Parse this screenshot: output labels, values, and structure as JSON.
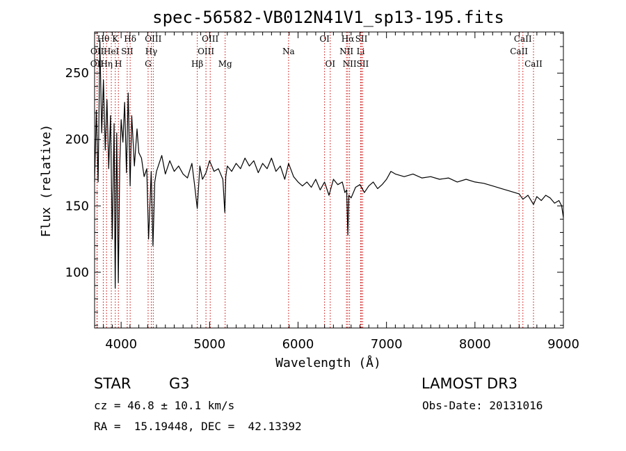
{
  "chart_data": {
    "type": "line",
    "title": "spec-56582-VB012N41V1_sp13-195.fits",
    "xlabel": "Wavelength (Å)",
    "ylabel": "Flux (relative)",
    "xlim": [
      3700,
      9000
    ],
    "ylim": [
      58,
      281
    ],
    "xticks": [
      4000,
      5000,
      6000,
      7000,
      8000,
      9000
    ],
    "yticks": [
      100,
      150,
      200,
      250
    ],
    "grid": false,
    "series": [
      {
        "name": "flux",
        "x": [
          3700,
          3720,
          3740,
          3760,
          3780,
          3800,
          3820,
          3840,
          3860,
          3880,
          3900,
          3920,
          3933,
          3950,
          3968,
          3985,
          4000,
          4020,
          4040,
          4060,
          4080,
          4102,
          4120,
          4150,
          4180,
          4200,
          4230,
          4260,
          4290,
          4310,
          4340,
          4360,
          4380,
          4400,
          4430,
          4460,
          4500,
          4550,
          4600,
          4650,
          4700,
          4750,
          4800,
          4830,
          4861,
          4890,
          4920,
          4960,
          5000,
          5050,
          5100,
          5150,
          5172,
          5183,
          5200,
          5250,
          5300,
          5350,
          5400,
          5450,
          5500,
          5550,
          5600,
          5650,
          5700,
          5750,
          5800,
          5850,
          5893,
          5950,
          6000,
          6050,
          6100,
          6150,
          6200,
          6250,
          6300,
          6350,
          6400,
          6450,
          6500,
          6530,
          6550,
          6563,
          6575,
          6600,
          6650,
          6700,
          6750,
          6800,
          6850,
          6900,
          6950,
          7000,
          7050,
          7100,
          7200,
          7300,
          7400,
          7500,
          7600,
          7700,
          7800,
          7900,
          8000,
          8100,
          8200,
          8300,
          8400,
          8500,
          8542,
          8600,
          8662,
          8700,
          8750,
          8800,
          8850,
          8900,
          8950,
          8980,
          9000
        ],
        "values": [
          168,
          222,
          168,
          275,
          205,
          245,
          192,
          230,
          178,
          218,
          125,
          212,
          88,
          205,
          92,
          182,
          215,
          198,
          228,
          175,
          235,
          165,
          218,
          180,
          208,
          190,
          186,
          172,
          178,
          125,
          176,
          120,
          168,
          176,
          182,
          188,
          174,
          184,
          176,
          180,
          174,
          171,
          182,
          166,
          148,
          180,
          170,
          175,
          184,
          176,
          178,
          170,
          145,
          172,
          180,
          176,
          182,
          178,
          186,
          180,
          184,
          175,
          182,
          178,
          186,
          176,
          180,
          170,
          182,
          172,
          168,
          165,
          168,
          164,
          170,
          162,
          168,
          158,
          170,
          166,
          168,
          160,
          162,
          128,
          158,
          156,
          164,
          166,
          160,
          165,
          168,
          163,
          166,
          170,
          176,
          174,
          172,
          174,
          171,
          172,
          170,
          171,
          168,
          170,
          168,
          167,
          165,
          163,
          161,
          159,
          155,
          158,
          151,
          157,
          154,
          158,
          156,
          152,
          154,
          150,
          141
        ]
      }
    ],
    "lines": [
      {
        "label": "OII",
        "wave": 3727,
        "row": 2
      },
      {
        "label": "OII",
        "wave": 3729,
        "row": 1
      },
      {
        "label": "Hθ",
        "wave": 3798,
        "row": 0
      },
      {
        "label": "Hη",
        "wave": 3835,
        "row": 2
      },
      {
        "label": "HeI",
        "wave": 3889,
        "row": 1
      },
      {
        "label": "K",
        "wave": 3934,
        "row": 0
      },
      {
        "label": "SII",
        "wave": 4069,
        "row": 1
      },
      {
        "label": "H",
        "wave": 3969,
        "row": 2
      },
      {
        "label": "Hδ",
        "wave": 4102,
        "row": 0
      },
      {
        "label": "G",
        "wave": 4305,
        "row": 2
      },
      {
        "label": "Hγ",
        "wave": 4341,
        "row": 1
      },
      {
        "label": "OIII",
        "wave": 4363,
        "row": 0
      },
      {
        "label": "Hβ",
        "wave": 4861,
        "row": 2
      },
      {
        "label": "OIII",
        "wave": 4959,
        "row": 1
      },
      {
        "label": "OIII",
        "wave": 5007,
        "row": 0
      },
      {
        "label": "Mg",
        "wave": 5176,
        "row": 2
      },
      {
        "label": "Na",
        "wave": 5893,
        "row": 1
      },
      {
        "label": "OI",
        "wave": 6300,
        "row": 0
      },
      {
        "label": "OI",
        "wave": 6364,
        "row": 2
      },
      {
        "label": "NII",
        "wave": 6548,
        "row": 1
      },
      {
        "label": "Hα",
        "wave": 6563,
        "row": 0
      },
      {
        "label": "NII",
        "wave": 6583,
        "row": 2
      },
      {
        "label": "SII",
        "wave": 6716,
        "row": 0
      },
      {
        "label": "Li",
        "wave": 6708,
        "row": 1
      },
      {
        "label": "SII",
        "wave": 6731,
        "row": 2
      },
      {
        "label": "CaII",
        "wave": 8498,
        "row": 1
      },
      {
        "label": "CaII",
        "wave": 8542,
        "row": 0
      },
      {
        "label": "CaII",
        "wave": 8662,
        "row": 2
      }
    ]
  },
  "info": {
    "class": "STAR",
    "subclass": "G3",
    "survey": "LAMOST DR3",
    "cz": "cz = 46.8 ± 10.1 km/s",
    "obs_date": "Obs-Date: 20131016",
    "coords": "RA =  15.19448, DEC =  42.13392"
  }
}
